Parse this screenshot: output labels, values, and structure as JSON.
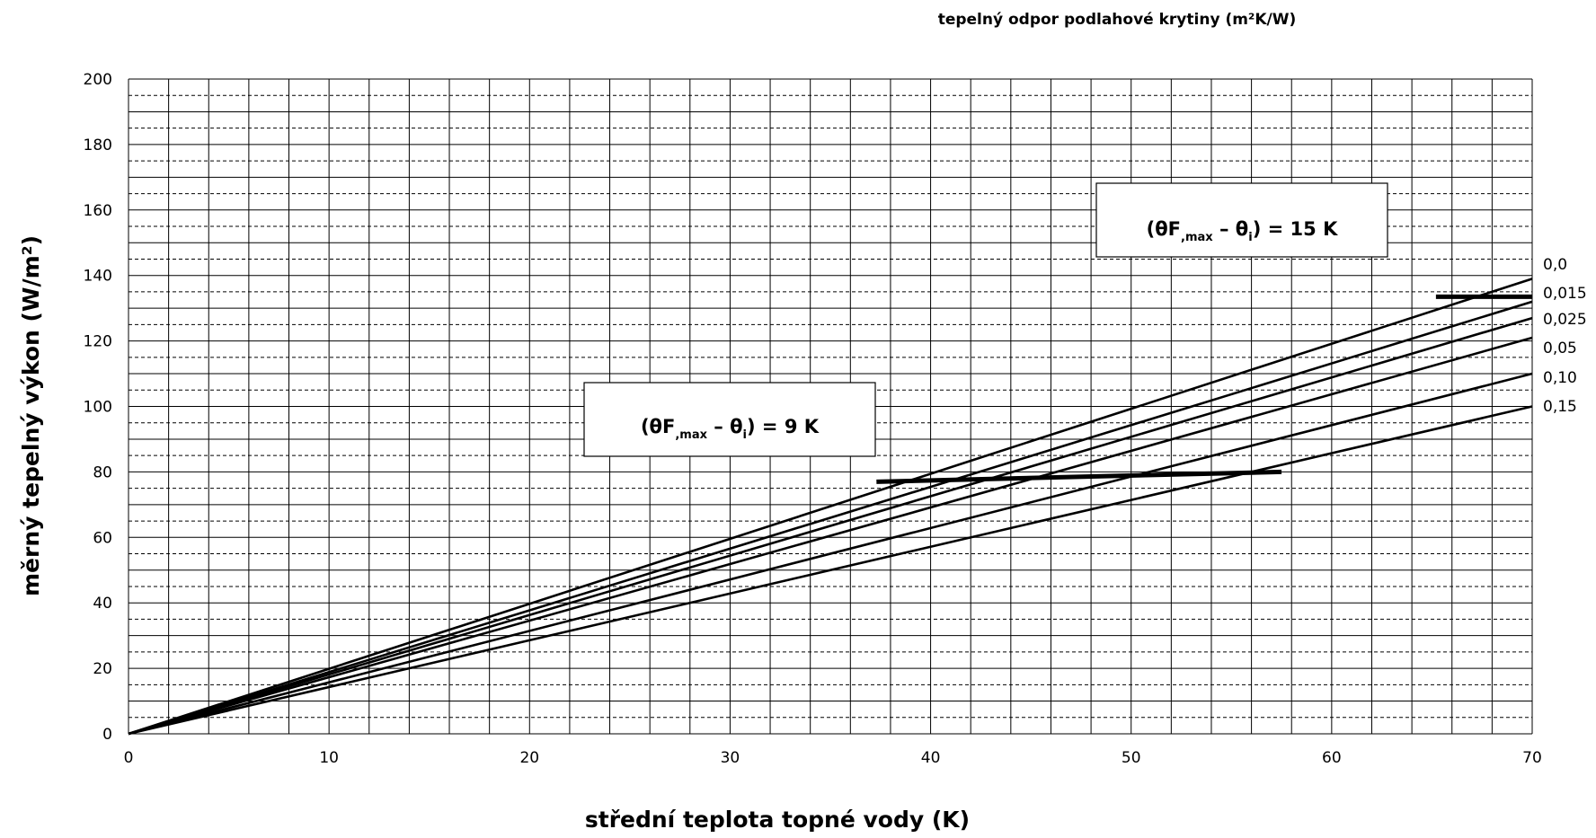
{
  "chart_data": {
    "type": "line",
    "xlabel": "střední teplota topné vody  (K)",
    "ylabel": "měrný tepelný výkon (W/m²)",
    "legend_title": "tepelný odpor podlahové krytiny (m²K/W)",
    "xlim": [
      0,
      70
    ],
    "ylim": [
      0,
      200
    ],
    "x_ticks": [
      "0",
      "10",
      "20",
      "30",
      "40",
      "50",
      "60",
      "70"
    ],
    "y_ticks": [
      "0",
      "20",
      "40",
      "60",
      "80",
      "100",
      "120",
      "140",
      "160",
      "180",
      "200"
    ],
    "grid": true,
    "series": [
      {
        "name": "0,0",
        "x": [
          0,
          70
        ],
        "y": [
          0,
          139
        ]
      },
      {
        "name": "0,015",
        "x": [
          0,
          70
        ],
        "y": [
          0,
          132
        ]
      },
      {
        "name": "0,025",
        "x": [
          0,
          70
        ],
        "y": [
          0,
          127
        ]
      },
      {
        "name": "0,05",
        "x": [
          0,
          70
        ],
        "y": [
          0,
          121
        ]
      },
      {
        "name": "0,10",
        "x": [
          0,
          70
        ],
        "y": [
          0,
          110
        ]
      },
      {
        "name": "0,15",
        "x": [
          0,
          70
        ],
        "y": [
          0,
          100
        ]
      }
    ],
    "limit_lines": [
      {
        "x": [
          37.3,
          57.5
        ],
        "y": [
          77,
          80
        ]
      },
      {
        "x": [
          65.2,
          70
        ],
        "y": [
          133.5,
          133.5
        ]
      }
    ],
    "annotations": [
      {
        "prefix": "(θF",
        "sub1": ",max",
        "mid": " – θ",
        "sub2": "i",
        "suffix": ") =  15 K"
      },
      {
        "prefix": "(θF",
        "sub1": ",max",
        "mid": " – θ",
        "sub2": "i",
        "suffix": ") = 9 K"
      }
    ]
  }
}
